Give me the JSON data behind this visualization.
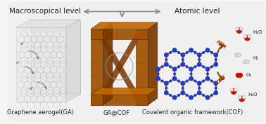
{
  "bg_color": "#f5f5f5",
  "title_left": "Macroscopical level",
  "title_right": "Atomic level",
  "arrow_color": "#888888",
  "down_arrow_color": "#888888",
  "label_ga": "Graphene aerogel(GA)",
  "label_gacof": "GA@COF",
  "label_cof": "Covalent organic framework(COF)",
  "cof_hex_color": "#cc2200",
  "cof_node_color": "#1a3ec8",
  "her_arrow_color": "#8B3A00",
  "oer_arrow_color": "#8B3A00",
  "h2o_red": "#cc1100",
  "h2o_white": "#e8e8e8",
  "h2_color": "#dddddd",
  "o2_color": "#cc1100",
  "ga_color": "#aaaaaa",
  "gacof_dark": "#7a3800",
  "gacof_mid": "#a05000",
  "gacof_light": "#c06800",
  "font_size_title": 7.5,
  "font_size_label": 6.0,
  "font_size_reaction": 5.0
}
